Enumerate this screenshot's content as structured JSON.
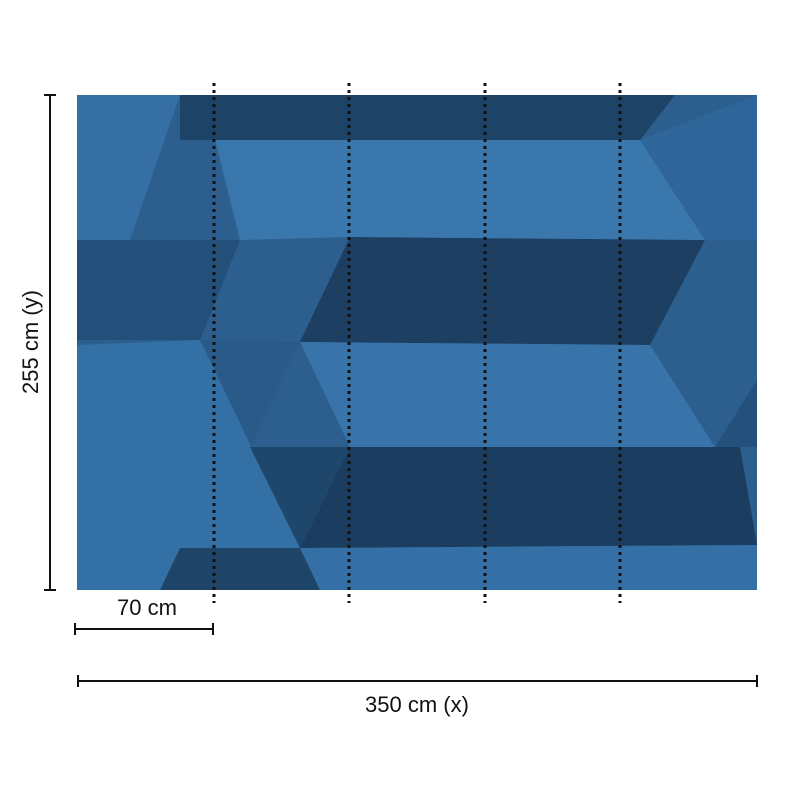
{
  "dimensions": {
    "height_label": "255 cm (y)",
    "panel_width_label": "70 cm",
    "width_label": "350 cm (x)"
  }
}
